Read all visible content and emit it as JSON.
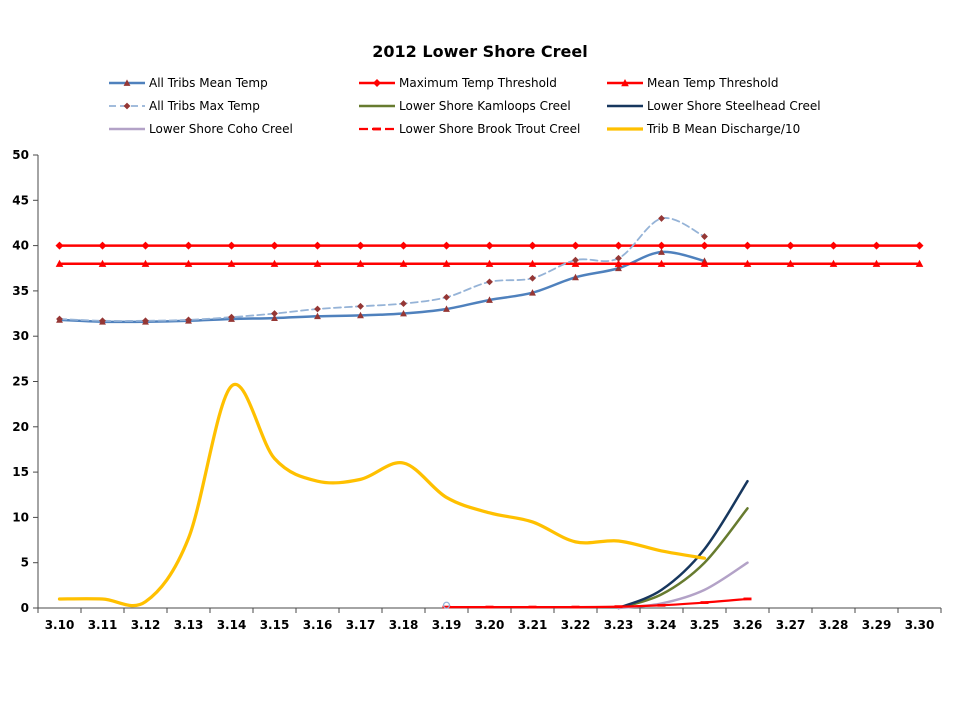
{
  "chart_data": {
    "type": "line",
    "title": "2012 Lower Shore Creel",
    "ylim": [
      0,
      50
    ],
    "ytick_interval": 5,
    "ytick_labels": [
      "0",
      "5",
      "10",
      "15",
      "20",
      "25",
      "30",
      "35",
      "40",
      "45",
      "50"
    ],
    "categories": [
      "3.10",
      "3.11",
      "3.12",
      "3.13",
      "3.14",
      "3.15",
      "3.16",
      "3.17",
      "3.18",
      "3.19",
      "3.20",
      "3.21",
      "3.22",
      "3.23",
      "3.24",
      "3.25",
      "3.26",
      "3.27",
      "3.28",
      "3.29",
      "3.30"
    ],
    "grid": false,
    "legend_position": "top",
    "legend_columns": 3,
    "axis_color": "#4a4a4a",
    "series": [
      {
        "name": "All Tribs Mean Temp",
        "color": "#4F81BD",
        "width": 2.5,
        "dash": "solid",
        "marker": "triangle",
        "marker_color": "#953735",
        "marker_size": 3.6,
        "smooth": true,
        "values": [
          31.8,
          31.6,
          31.6,
          31.7,
          31.9,
          32,
          32.2,
          32.3,
          32.5,
          33,
          34,
          34.8,
          36.5,
          37.5,
          39.3,
          38.3,
          null,
          null,
          null,
          null,
          null
        ]
      },
      {
        "name": "Maximum Temp Threshold",
        "color": "#FF0000",
        "width": 2.5,
        "dash": "solid",
        "marker": "diamond",
        "marker_color": "#FF0000",
        "marker_size": 4,
        "smooth": false,
        "values": [
          40,
          40,
          40,
          40,
          40,
          40,
          40,
          40,
          40,
          40,
          40,
          40,
          40,
          40,
          40,
          40,
          40,
          40,
          40,
          40,
          40
        ]
      },
      {
        "name": "Mean Temp Threshold",
        "color": "#FF0000",
        "width": 2.5,
        "dash": "solid",
        "marker": "triangle",
        "marker_color": "#FF0000",
        "marker_size": 4,
        "smooth": false,
        "values": [
          38,
          38,
          38,
          38,
          38,
          38,
          38,
          38,
          38,
          38,
          38,
          38,
          38,
          38,
          38,
          38,
          38,
          38,
          38,
          38,
          38
        ]
      },
      {
        "name": "All Tribs Max Temp",
        "color": "#95B3D7",
        "width": 1.8,
        "dash": "7 4",
        "marker": "diamond",
        "marker_color": "#953735",
        "marker_size": 3.4,
        "smooth": true,
        "values": [
          31.9,
          31.7,
          31.7,
          31.8,
          32.1,
          32.5,
          33,
          33.3,
          33.6,
          34.3,
          36,
          36.4,
          38.4,
          38.6,
          43,
          41,
          null,
          null,
          null,
          null,
          null
        ]
      },
      {
        "name": "Lower Shore Kamloops Creel",
        "color": "#677B2F",
        "width": 2.5,
        "dash": "solid",
        "marker": "none",
        "smooth": true,
        "values": [
          null,
          null,
          null,
          null,
          null,
          null,
          null,
          null,
          null,
          null,
          null,
          null,
          null,
          0,
          1.5,
          5,
          11,
          null,
          null,
          null,
          null
        ]
      },
      {
        "name": "Lower Shore Steelhead Creel",
        "color": "#17375E",
        "width": 2.5,
        "dash": "solid",
        "marker": "none",
        "smooth": true,
        "values": [
          null,
          null,
          null,
          null,
          null,
          null,
          null,
          null,
          null,
          null,
          null,
          null,
          null,
          0,
          2,
          6.5,
          14,
          null,
          null,
          null,
          null
        ]
      },
      {
        "name": "Lower Shore Coho Creel",
        "color": "#B3A2C7",
        "width": 2.5,
        "dash": "solid",
        "marker": "none",
        "smooth": true,
        "values": [
          null,
          null,
          null,
          null,
          null,
          null,
          null,
          null,
          null,
          null,
          null,
          null,
          null,
          0,
          0.5,
          2,
          5,
          null,
          null,
          null,
          null
        ]
      },
      {
        "name": "Lower Shore Brook Trout Creel",
        "color": "#FF0000",
        "width": 2.25,
        "dash": "solid",
        "legend_dash": "9 4",
        "marker": "dash",
        "marker_color": "#FF0000",
        "marker_size": 3,
        "smooth": true,
        "values": [
          null,
          null,
          null,
          null,
          null,
          null,
          null,
          null,
          null,
          0.1,
          0.1,
          0.1,
          0.1,
          0.15,
          0.3,
          0.6,
          1,
          null,
          null,
          null,
          null
        ]
      },
      {
        "name": "Trib B Mean Discharge/10",
        "color": "#FFC000",
        "width": 3.25,
        "dash": "solid",
        "marker": "none",
        "smooth": true,
        "values": [
          1,
          1,
          0.7,
          7.7,
          24.5,
          16.5,
          14,
          14.2,
          16,
          12.2,
          10.5,
          9.5,
          7.3,
          7.4,
          6.3,
          5.5,
          null,
          null,
          null,
          null,
          null
        ]
      }
    ],
    "annotations": [
      {
        "type": "open-circle",
        "category": "3.19",
        "value": 0.3,
        "color": "#95B3D7"
      }
    ]
  }
}
